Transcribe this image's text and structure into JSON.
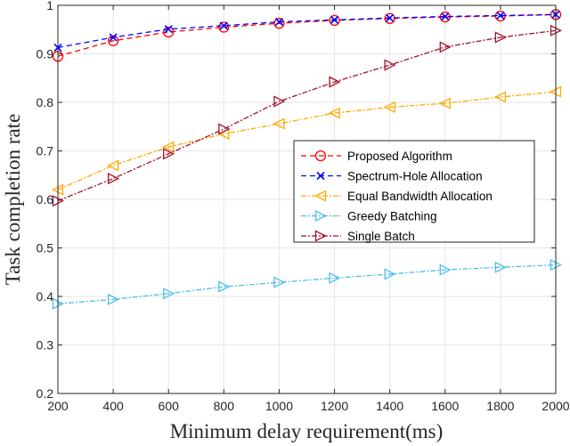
{
  "chart_data": {
    "type": "line",
    "title": "",
    "xlabel": "Minimum delay requirement(ms)",
    "ylabel": "Task completion rate",
    "xlim": [
      200,
      2000
    ],
    "ylim": [
      0.2,
      1
    ],
    "grid": true,
    "legend_position": "center-right",
    "xticks": [
      "200",
      "400",
      "600",
      "800",
      "1000",
      "1200",
      "1400",
      "1600",
      "1800",
      "2000"
    ],
    "yticks": [
      "0.2",
      "0.3",
      "0.4",
      "0.5",
      "0.6",
      "0.7",
      "0.8",
      "0.9",
      "1"
    ],
    "x": [
      200,
      400,
      600,
      800,
      1000,
      1200,
      1400,
      1600,
      1800,
      2000
    ],
    "series": [
      {
        "name": "Proposed Algorithm",
        "color": "#ff0000",
        "marker": "circle",
        "dash": "6,4",
        "values": [
          0.895,
          0.927,
          0.945,
          0.955,
          0.963,
          0.969,
          0.973,
          0.976,
          0.978,
          0.981
        ]
      },
      {
        "name": "Spectrum-Hole Allocation",
        "color": "#0000ff",
        "marker": "x",
        "dash": "6,4",
        "values": [
          0.913,
          0.934,
          0.951,
          0.958,
          0.966,
          0.97,
          0.974,
          0.977,
          0.979,
          0.981
        ]
      },
      {
        "name": "Equal Bandwidth Allocation",
        "color": "#ffaa00",
        "marker": "triangle-left",
        "dash": "6,2,2,2",
        "values": [
          0.62,
          0.67,
          0.708,
          0.735,
          0.756,
          0.778,
          0.79,
          0.798,
          0.811,
          0.822
        ]
      },
      {
        "name": "Greedy Batching",
        "color": "#4dbeee",
        "marker": "triangle-right",
        "dash": "6,2,2,2",
        "values": [
          0.385,
          0.394,
          0.406,
          0.42,
          0.429,
          0.438,
          0.446,
          0.455,
          0.46,
          0.465
        ]
      },
      {
        "name": "Single Batch",
        "color": "#a2142f",
        "marker": "triangle-right",
        "dash": "6,2,2,2",
        "values": [
          0.597,
          0.643,
          0.694,
          0.745,
          0.802,
          0.842,
          0.877,
          0.914,
          0.934,
          0.948
        ]
      }
    ]
  }
}
